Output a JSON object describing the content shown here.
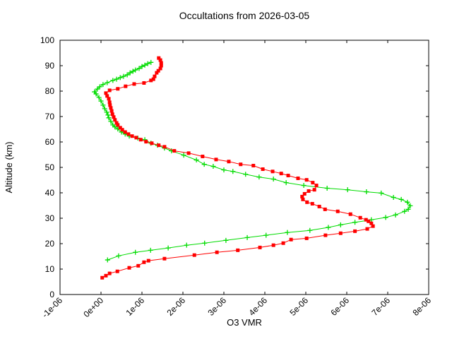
{
  "title": "Occultations from 2026-03-05",
  "colors": {
    "background": "#ffffff",
    "axis": "#000000",
    "series_green": "#00dc00",
    "series_red": "#ff0000"
  },
  "chart_data": {
    "type": "line",
    "title": "Occultations from 2026-03-05",
    "xlabel": "O3 VMR",
    "ylabel": "Altitude (km)",
    "xlim": [
      -1e-06,
      8e-06
    ],
    "ylim": [
      0,
      100
    ],
    "grid": false,
    "legend": "none",
    "x_tick_values": [
      -1e-06,
      0,
      1e-06,
      2e-06,
      3e-06,
      4e-06,
      5e-06,
      6e-06,
      7e-06,
      8e-06
    ],
    "x_tick_labels": [
      "-1e-06",
      "0e+00",
      "1e-06",
      "2e-06",
      "3e-06",
      "4e-06",
      "5e-06",
      "6e-06",
      "7e-06",
      "8e-06"
    ],
    "y_tick_values": [
      0,
      10,
      20,
      30,
      40,
      50,
      60,
      70,
      80,
      90,
      100
    ],
    "y_tick_labels": [
      "0",
      "10",
      "20",
      "30",
      "40",
      "50",
      "60",
      "70",
      "80",
      "90",
      "100"
    ],
    "point_format": "[o3_vmr, altitude_km]",
    "series": [
      {
        "name": "occultation-profile-green",
        "color": "#00dc00",
        "marker": "plus",
        "points": [
          [
            1.6e-07,
            13.6
          ],
          [
            4.3e-07,
            15.2
          ],
          [
            8.4e-07,
            16.6
          ],
          [
            1.21e-06,
            17.4
          ],
          [
            1.64e-06,
            18.3
          ],
          [
            2.09e-06,
            19.4
          ],
          [
            2.53e-06,
            20.2
          ],
          [
            3.05e-06,
            21.3
          ],
          [
            3.57e-06,
            22.4
          ],
          [
            4.03e-06,
            23.3
          ],
          [
            4.55e-06,
            24.4
          ],
          [
            5.1e-06,
            25.2
          ],
          [
            5.55e-06,
            26.4
          ],
          [
            5.85e-06,
            27.4
          ],
          [
            6.2e-06,
            28.4
          ],
          [
            6.6e-06,
            29.4
          ],
          [
            6.95e-06,
            30.3
          ],
          [
            7.19e-06,
            31.3
          ],
          [
            7.41e-06,
            32.7
          ],
          [
            7.5e-06,
            33.5
          ],
          [
            7.55e-06,
            34.9
          ],
          [
            7.48e-06,
            36.3
          ],
          [
            7.33e-06,
            37.4
          ],
          [
            7.14e-06,
            38.2
          ],
          [
            6.84e-06,
            39.9
          ],
          [
            6.48e-06,
            40.4
          ],
          [
            6.02e-06,
            41.2
          ],
          [
            5.52e-06,
            41.8
          ],
          [
            4.95e-06,
            42.9
          ],
          [
            4.52e-06,
            44.0
          ],
          [
            4.21e-06,
            45.4
          ],
          [
            3.86e-06,
            46.2
          ],
          [
            3.53e-06,
            47.3
          ],
          [
            3.22e-06,
            48.4
          ],
          [
            3e-06,
            49.0
          ],
          [
            2.74e-06,
            50.4
          ],
          [
            2.52e-06,
            51.2
          ],
          [
            2.33e-06,
            52.9
          ],
          [
            2.02e-06,
            54.8
          ],
          [
            1.72e-06,
            56.5
          ],
          [
            1.55e-06,
            57.6
          ],
          [
            1.38e-06,
            58.7
          ],
          [
            1.22e-06,
            59.5
          ],
          [
            1.07e-06,
            60.9
          ],
          [
            9e-07,
            61.5
          ],
          [
            6.9e-07,
            62.3
          ],
          [
            5.9e-07,
            63.1
          ],
          [
            5e-07,
            63.9
          ],
          [
            4.1e-07,
            65.1
          ],
          [
            3.4e-07,
            65.9
          ],
          [
            2.9e-07,
            66.7
          ],
          [
            2.4e-07,
            68.1
          ],
          [
            1.9e-07,
            69.5
          ],
          [
            1.7e-07,
            70.6
          ],
          [
            1.4e-07,
            71.7
          ],
          [
            9e-08,
            73.1
          ],
          [
            5e-08,
            74.5
          ],
          [
            0.0,
            76.1
          ],
          [
            -5e-08,
            77.5
          ],
          [
            -1.2e-07,
            78.9
          ],
          [
            -1.6e-07,
            79.7
          ],
          [
            -9e-08,
            80.8
          ],
          [
            -3e-08,
            81.7
          ],
          [
            5e-08,
            82.6
          ],
          [
            1.5e-07,
            83.3
          ],
          [
            2.9e-07,
            84.2
          ],
          [
            3.8e-07,
            84.7
          ],
          [
            4.7e-07,
            85.3
          ],
          [
            5.5e-07,
            85.8
          ],
          [
            6.4e-07,
            86.4
          ],
          [
            7.1e-07,
            87.2
          ],
          [
            7.8e-07,
            87.8
          ],
          [
            8.4e-07,
            88.3
          ],
          [
            9.3e-07,
            88.9
          ],
          [
            1e-06,
            89.7
          ],
          [
            1.07e-06,
            90.2
          ],
          [
            1.14e-06,
            90.8
          ],
          [
            1.22e-06,
            91.3
          ]
        ]
      },
      {
        "name": "occultation-profile-red",
        "color": "#ff0000",
        "marker": "filled-square",
        "points": [
          [
            3e-08,
            6.6
          ],
          [
            1.2e-07,
            7.4
          ],
          [
            2.1e-07,
            8.3
          ],
          [
            4e-07,
            9.1
          ],
          [
            6.9e-07,
            10.5
          ],
          [
            9.1e-07,
            11.3
          ],
          [
            1.05e-06,
            12.7
          ],
          [
            1.16e-06,
            13.3
          ],
          [
            1.55e-06,
            14.1
          ],
          [
            2.28e-06,
            15.5
          ],
          [
            2.83e-06,
            16.6
          ],
          [
            3.34e-06,
            17.4
          ],
          [
            3.88e-06,
            18.5
          ],
          [
            4.21e-06,
            19.4
          ],
          [
            4.45e-06,
            20.2
          ],
          [
            4.64e-06,
            21.6
          ],
          [
            5.02e-06,
            22.1
          ],
          [
            5.48e-06,
            23.3
          ],
          [
            5.85e-06,
            24.1
          ],
          [
            6.2e-06,
            24.9
          ],
          [
            6.5e-06,
            25.8
          ],
          [
            6.64e-06,
            26.9
          ],
          [
            6.6e-06,
            28.0
          ],
          [
            6.53e-06,
            28.8
          ],
          [
            6.47e-06,
            29.4
          ],
          [
            6.33e-06,
            30.2
          ],
          [
            6.09e-06,
            31.6
          ],
          [
            5.78e-06,
            32.7
          ],
          [
            5.47e-06,
            33.5
          ],
          [
            5.33e-06,
            34.6
          ],
          [
            5.16e-06,
            35.7
          ],
          [
            5.03e-06,
            36.3
          ],
          [
            4.93e-06,
            37.4
          ],
          [
            4.91e-06,
            38.5
          ],
          [
            4.97e-06,
            39.6
          ],
          [
            5.07e-06,
            40.7
          ],
          [
            5.21e-06,
            41.2
          ],
          [
            5.26e-06,
            42.9
          ],
          [
            5.17e-06,
            44.0
          ],
          [
            5.02e-06,
            45.1
          ],
          [
            4.81e-06,
            45.7
          ],
          [
            4.57e-06,
            46.8
          ],
          [
            4.4e-06,
            47.6
          ],
          [
            4.19e-06,
            48.4
          ],
          [
            3.95e-06,
            49.3
          ],
          [
            3.72e-06,
            50.7
          ],
          [
            3.41e-06,
            51.2
          ],
          [
            3.12e-06,
            52.3
          ],
          [
            2.81e-06,
            53.1
          ],
          [
            2.48e-06,
            54.3
          ],
          [
            2.14e-06,
            55.6
          ],
          [
            1.79e-06,
            56.5
          ],
          [
            1.55e-06,
            58.1
          ],
          [
            1.41e-06,
            58.7
          ],
          [
            1.24e-06,
            59.5
          ],
          [
            1.1e-06,
            60.1
          ],
          [
            9.7e-07,
            60.9
          ],
          [
            8.6e-07,
            61.7
          ],
          [
            7.6e-07,
            62.3
          ],
          [
            6.7e-07,
            63.1
          ],
          [
            5.9e-07,
            63.9
          ],
          [
            5.2e-07,
            64.8
          ],
          [
            4.7e-07,
            65.6
          ],
          [
            4.1e-07,
            66.7
          ],
          [
            3.8e-07,
            67.5
          ],
          [
            3.4e-07,
            68.7
          ],
          [
            3.1e-07,
            69.8
          ],
          [
            2.8e-07,
            70.9
          ],
          [
            2.6e-07,
            72.2
          ],
          [
            2.4e-07,
            73.4
          ],
          [
            2.2e-07,
            74.5
          ],
          [
            2.1e-07,
            75.6
          ],
          [
            1.9e-07,
            77.0
          ],
          [
            1.5e-07,
            78.1
          ],
          [
            1.2e-07,
            79.2
          ],
          [
            2.1e-07,
            80.3
          ],
          [
            4.1e-07,
            80.9
          ],
          [
            6e-07,
            81.9
          ],
          [
            8.1e-07,
            82.8
          ],
          [
            1.05e-06,
            83.2
          ],
          [
            1.22e-06,
            84.2
          ],
          [
            1.28e-06,
            84.7
          ],
          [
            1.31e-06,
            85.8
          ],
          [
            1.36e-06,
            87.2
          ],
          [
            1.4e-06,
            88.0
          ],
          [
            1.45e-06,
            88.9
          ],
          [
            1.47e-06,
            90.0
          ],
          [
            1.47e-06,
            91.1
          ],
          [
            1.45e-06,
            92.2
          ],
          [
            1.41e-06,
            93.0
          ]
        ]
      }
    ]
  }
}
